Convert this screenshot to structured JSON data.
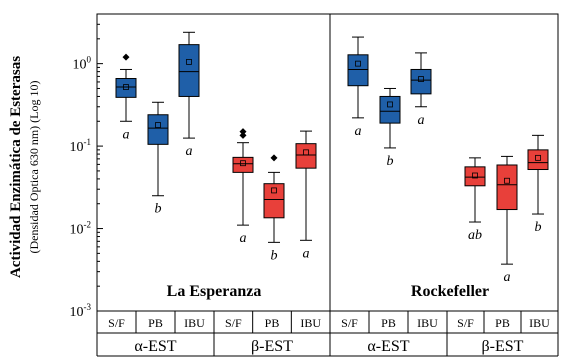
{
  "chart_data": {
    "type": "box",
    "ylabel": "Actividad Enzimática de Esterasas",
    "ylabel_sub": "(Densidad Optica 630 nm) (Log 10)",
    "yscale": "log",
    "ylim": [
      0.001,
      4
    ],
    "yticks": [
      {
        "base": "10",
        "exp": "0"
      },
      {
        "base": "10",
        "exp": "-1"
      },
      {
        "base": "10",
        "exp": "-2"
      },
      {
        "base": "10",
        "exp": "-3"
      }
    ],
    "ytick_values": [
      1,
      0.1,
      0.01,
      0.001
    ],
    "sites": [
      "La Esperanza",
      "Rockefeller"
    ],
    "enzymes": [
      "α-EST",
      "β-EST",
      "α-EST",
      "β-EST"
    ],
    "treatments": [
      "S/F",
      "PB",
      "IBU",
      "S/F",
      "PB",
      "IBU",
      "S/F",
      "PB",
      "IBU",
      "S/F",
      "PB",
      "IBU"
    ],
    "colors": {
      "alpha": "#1f5fa8",
      "beta": "#e8403a"
    },
    "boxes": [
      {
        "group": "alpha",
        "min": 0.2,
        "q1": 0.39,
        "median": 0.52,
        "q3": 0.66,
        "max": 0.85,
        "mean": 0.52,
        "outliers": [
          1.2
        ],
        "label": "a"
      },
      {
        "group": "alpha",
        "min": 0.025,
        "q1": 0.105,
        "median": 0.165,
        "q3": 0.24,
        "max": 0.34,
        "mean": 0.18,
        "outliers": [],
        "label": "b"
      },
      {
        "group": "alpha",
        "min": 0.125,
        "q1": 0.4,
        "median": 0.8,
        "q3": 1.7,
        "max": 2.4,
        "mean": 1.05,
        "outliers": [],
        "label": "a"
      },
      {
        "group": "beta",
        "min": 0.011,
        "q1": 0.048,
        "median": 0.061,
        "q3": 0.073,
        "max": 0.11,
        "mean": 0.062,
        "outliers": [
          0.135,
          0.15
        ],
        "label": "a"
      },
      {
        "group": "beta",
        "min": 0.0068,
        "q1": 0.0135,
        "median": 0.0225,
        "q3": 0.035,
        "max": 0.048,
        "mean": 0.029,
        "outliers": [
          0.072
        ],
        "label": "b"
      },
      {
        "group": "beta",
        "min": 0.0072,
        "q1": 0.054,
        "median": 0.078,
        "q3": 0.107,
        "max": 0.152,
        "mean": 0.084,
        "outliers": [],
        "label": "a"
      },
      {
        "group": "alpha",
        "min": 0.22,
        "q1": 0.54,
        "median": 0.85,
        "q3": 1.28,
        "max": 2.1,
        "mean": 1.0,
        "outliers": [],
        "label": "a"
      },
      {
        "group": "alpha",
        "min": 0.095,
        "q1": 0.19,
        "median": 0.265,
        "q3": 0.4,
        "max": 0.5,
        "mean": 0.32,
        "outliers": [],
        "label": "b"
      },
      {
        "group": "alpha",
        "min": 0.3,
        "q1": 0.43,
        "median": 0.63,
        "q3": 0.85,
        "max": 1.35,
        "mean": 0.65,
        "outliers": [],
        "label": "a"
      },
      {
        "group": "beta",
        "min": 0.012,
        "q1": 0.033,
        "median": 0.042,
        "q3": 0.056,
        "max": 0.072,
        "mean": 0.044,
        "outliers": [],
        "label": "ab"
      },
      {
        "group": "beta",
        "min": 0.0037,
        "q1": 0.017,
        "median": 0.034,
        "q3": 0.059,
        "max": 0.075,
        "mean": 0.038,
        "outliers": [],
        "label": "a"
      },
      {
        "group": "beta",
        "min": 0.015,
        "q1": 0.052,
        "median": 0.063,
        "q3": 0.09,
        "max": 0.135,
        "mean": 0.072,
        "outliers": [],
        "label": "b"
      }
    ]
  }
}
